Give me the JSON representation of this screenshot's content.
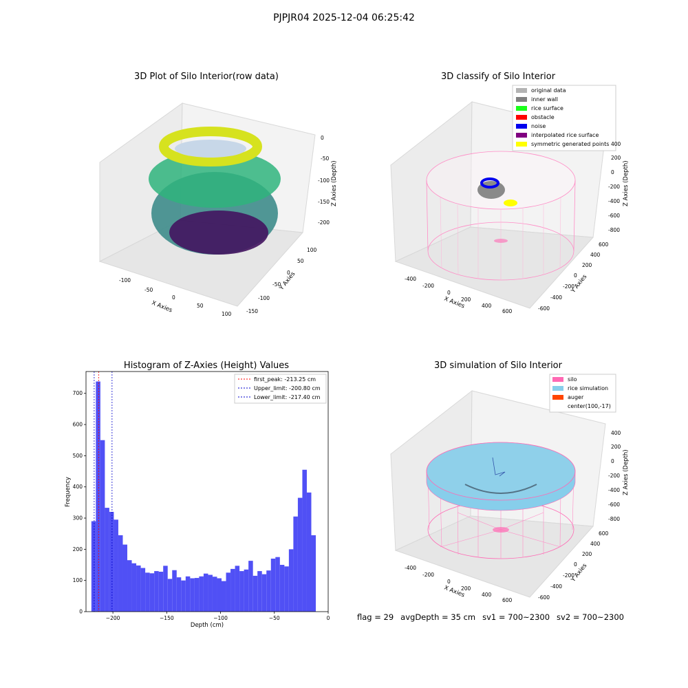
{
  "suptitle": "PJPJR04 2025-12-04 06:25:42",
  "panels": {
    "raw": {
      "title": "3D Plot of Silo Interior(row data)",
      "xlabel": "X Axies",
      "ylabel": "Y Axies",
      "zlabel": "Z Axies (Depth)",
      "xticks": [
        "-100",
        "-50",
        "0",
        "50",
        "100"
      ],
      "yticks": [
        "-150",
        "-100",
        "-50",
        "0",
        "50",
        "100"
      ],
      "zticks": [
        "0",
        "-50",
        "-100",
        "-150",
        "-200"
      ]
    },
    "classify": {
      "title": "3D classify of Silo Interior",
      "xlabel": "X Axies",
      "ylabel": "Y Axies",
      "zlabel": "Z Axies (Depth)",
      "xticks": [
        "-400",
        "-200",
        "0",
        "200",
        "400",
        "600"
      ],
      "yticks": [
        "-600",
        "-400",
        "-200",
        "0",
        "200",
        "400",
        "600"
      ],
      "zticks": [
        "400",
        "200",
        "0",
        "-200",
        "-400",
        "-600",
        "-800"
      ],
      "legend": [
        {
          "label": "original data",
          "color": "#b3b3b3"
        },
        {
          "label": "inner wall",
          "color": "#808080"
        },
        {
          "label": "rice surface",
          "color": "#1aff1a"
        },
        {
          "label": "obstacle",
          "color": "#ff0000"
        },
        {
          "label": "noise",
          "color": "#0000ee"
        },
        {
          "label": "interpolated rice surface",
          "color": "#800080"
        },
        {
          "label": "symmetric generated points",
          "color": "#ffff00"
        }
      ]
    },
    "simulation": {
      "title": "3D simulation of Silo Interior",
      "xlabel": "X Axies",
      "ylabel": "Y Axies",
      "zlabel": "Z Axies (Depth)",
      "xticks": [
        "-400",
        "-200",
        "0",
        "200",
        "400",
        "600"
      ],
      "yticks": [
        "-600",
        "-400",
        "-200",
        "0",
        "200",
        "400",
        "600"
      ],
      "zticks": [
        "400",
        "200",
        "0",
        "-200",
        "-400",
        "-600",
        "-800"
      ],
      "legend": [
        {
          "label": "silo",
          "color": "#ff69b4"
        },
        {
          "label": "rice simulation",
          "color": "#87ceeb"
        },
        {
          "label": "auger",
          "color": "#ff4500"
        },
        {
          "label": "center(100,-17)",
          "color": ""
        }
      ]
    }
  },
  "footer": {
    "flag": "flag = 29",
    "avg_depth": "avgDepth = 35 cm",
    "sv1": "sv1 = 700~2300",
    "sv2": "sv2 = 700~2300"
  },
  "chart_data": {
    "type": "bar",
    "title": "Histogram of Z-Axies (Height) Values",
    "xlabel": "Depth (cm)",
    "ylabel": "Frequency",
    "xlim": [
      -225,
      0
    ],
    "ylim": [
      0,
      770
    ],
    "bin_start": -220,
    "bin_width": 4.17,
    "xticks": [
      -200,
      -150,
      -100,
      -50,
      0
    ],
    "yticks": [
      0,
      100,
      200,
      300,
      400,
      500,
      600,
      700
    ],
    "color": "#5050f5",
    "values": [
      290,
      738,
      550,
      333,
      320,
      295,
      245,
      215,
      165,
      155,
      148,
      140,
      125,
      123,
      130,
      128,
      147,
      105,
      133,
      110,
      100,
      113,
      107,
      108,
      113,
      122,
      118,
      112,
      107,
      98,
      125,
      137,
      147,
      130,
      135,
      163,
      115,
      130,
      120,
      132,
      170,
      175,
      150,
      145,
      200,
      305,
      365,
      455,
      382,
      245
    ],
    "vlines": [
      {
        "label": "first_peak: -213.25 cm",
        "x": -213.25,
        "color": "#ff0000"
      },
      {
        "label": "Upper_limit: -200.80 cm",
        "x": -200.8,
        "color": "#0000cc"
      },
      {
        "label": "Lower_limit: -217.40 cm",
        "x": -217.4,
        "color": "#0000cc"
      }
    ]
  }
}
